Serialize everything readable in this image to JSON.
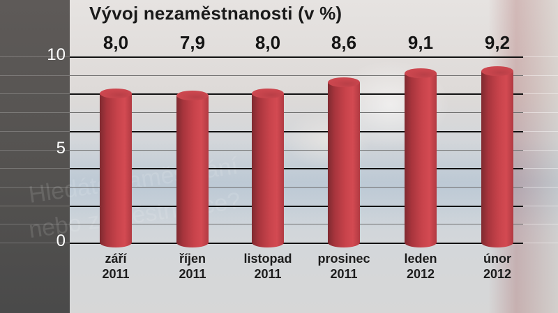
{
  "chart_data": {
    "type": "bar",
    "title": "Vývoj nezaměstnanosti (v %)",
    "xlabel": "",
    "ylabel": "",
    "categories": [
      {
        "month": "září",
        "year": "2011"
      },
      {
        "month": "říjen",
        "year": "2011"
      },
      {
        "month": "listopad",
        "year": "2011"
      },
      {
        "month": "prosinec",
        "year": "2011"
      },
      {
        "month": "leden",
        "year": "2012"
      },
      {
        "month": "únor",
        "year": "2012"
      }
    ],
    "values": [
      8.0,
      7.9,
      8.0,
      8.6,
      9.1,
      9.2
    ],
    "value_labels": [
      "8,0",
      "7,9",
      "8,0",
      "8,6",
      "9,1",
      "9,2"
    ],
    "ylim": [
      0,
      10
    ],
    "yticks": [
      "10",
      "5",
      "0"
    ],
    "grid": true,
    "bar_style": "3d-cylinder",
    "bar_color": "#c8434b"
  }
}
